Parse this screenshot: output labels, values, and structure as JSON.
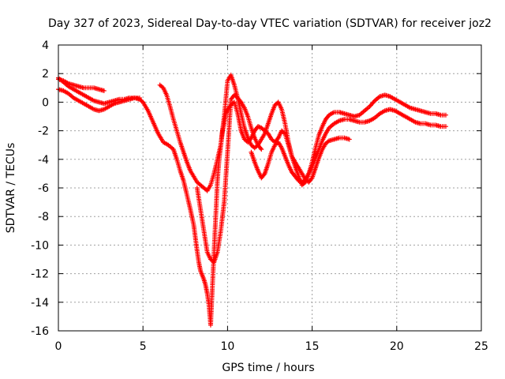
{
  "chart_data": {
    "type": "scatter",
    "title": "Day 327 of 2023, Sidereal Day-to-day VTEC variation (SDTVAR) for receiver joz2",
    "xlabel": "GPS time / hours",
    "ylabel": "SDTVAR / TECUs",
    "xlim": [
      0,
      25
    ],
    "ylim": [
      -16,
      4
    ],
    "xticks": [
      0,
      5,
      10,
      15,
      20,
      25
    ],
    "yticks": [
      -16,
      -14,
      -12,
      -10,
      -8,
      -6,
      -4,
      -2,
      0,
      2,
      4
    ],
    "grid": true,
    "marker": "+",
    "color": "#ff0000",
    "series": [
      {
        "x": [
          0.0,
          0.3,
          0.6,
          0.9,
          1.2,
          1.5,
          1.8,
          2.1,
          2.4,
          2.7,
          3.0,
          3.3,
          3.6,
          3.9,
          4.2,
          4.5,
          4.8,
          5.0,
          5.3,
          5.6,
          5.9,
          6.2,
          6.5,
          6.8,
          7.0,
          7.2,
          7.4,
          7.6,
          7.8,
          8.0,
          8.1,
          8.2,
          8.3,
          8.4,
          8.5,
          8.6,
          8.7,
          8.8,
          8.9,
          9.0,
          9.1,
          9.2,
          9.3,
          9.4,
          9.5,
          9.6,
          9.7,
          9.8,
          9.9,
          10.0,
          10.2,
          10.4,
          10.6,
          10.8,
          11.0,
          11.2,
          11.4,
          11.6,
          11.8,
          12.0,
          12.2,
          12.4,
          12.6,
          12.8,
          13.0,
          13.2,
          13.4,
          13.6,
          13.8,
          14.0,
          14.2,
          14.4,
          14.6,
          14.8,
          15.0,
          15.2,
          15.4,
          15.6,
          15.8,
          16.0,
          16.3,
          16.6,
          16.9,
          17.2
        ],
        "y": [
          1.7,
          1.4,
          1.1,
          0.9,
          0.7,
          0.5,
          0.3,
          0.1,
          0.0,
          -0.1,
          0.0,
          0.1,
          0.2,
          0.2,
          0.3,
          0.3,
          0.2,
          0.0,
          -0.6,
          -1.4,
          -2.2,
          -2.8,
          -3.0,
          -3.3,
          -4.0,
          -4.8,
          -5.5,
          -6.5,
          -7.5,
          -8.6,
          -9.5,
          -10.4,
          -11.2,
          -11.8,
          -12.1,
          -12.4,
          -12.8,
          -13.4,
          -14.2,
          -15.6,
          -13.0,
          -10.5,
          -8.0,
          -5.5,
          -4.0,
          -3.0,
          -2.0,
          -1.5,
          -0.8,
          -0.5,
          -0.2,
          0.0,
          -0.8,
          -2.0,
          -2.6,
          -2.8,
          -2.5,
          -2.0,
          -1.7,
          -1.8,
          -2.0,
          -2.2,
          -2.6,
          -2.8,
          -2.5,
          -2.0,
          -2.2,
          -3.0,
          -3.8,
          -4.2,
          -4.6,
          -5.0,
          -5.4,
          -5.6,
          -5.3,
          -4.6,
          -3.9,
          -3.3,
          -2.9,
          -2.7,
          -2.6,
          -2.5,
          -2.5,
          -2.6
        ]
      },
      {
        "x": [
          0.0,
          0.3,
          0.6,
          0.9,
          1.2,
          1.5,
          1.8,
          2.1,
          2.4,
          2.7,
          3.0,
          3.3,
          3.6,
          3.9,
          4.2,
          4.5,
          4.8
        ],
        "y": [
          0.9,
          0.8,
          0.6,
          0.3,
          0.1,
          -0.1,
          -0.3,
          -0.5,
          -0.6,
          -0.5,
          -0.3,
          -0.1,
          0.0,
          0.1,
          0.2,
          0.3,
          0.3
        ]
      },
      {
        "x": [
          0.0,
          0.3,
          0.6,
          0.9,
          1.2,
          1.5,
          1.8,
          2.1,
          2.4,
          2.7
        ],
        "y": [
          1.6,
          1.5,
          1.3,
          1.2,
          1.1,
          1.0,
          1.0,
          1.0,
          0.9,
          0.8
        ]
      },
      {
        "x": [
          6.0,
          6.2,
          6.4,
          6.6,
          6.8,
          7.0,
          7.2,
          7.4,
          7.6,
          7.8,
          8.0,
          8.2,
          8.4,
          8.6,
          8.8,
          9.0,
          9.2,
          9.4,
          9.6,
          9.8,
          10.0,
          10.2,
          10.4,
          10.6,
          10.8,
          11.0,
          11.2,
          11.4,
          11.6,
          11.8,
          12.0,
          12.2,
          12.4,
          12.6,
          12.8,
          13.0,
          13.2,
          13.4,
          13.6,
          13.8,
          14.0,
          14.2,
          14.4,
          14.6,
          14.8,
          15.0,
          15.2,
          15.4,
          15.6,
          15.8,
          16.0,
          16.3,
          16.6,
          16.9,
          17.2,
          17.5,
          17.8,
          18.1,
          18.4,
          18.7,
          19.0,
          19.3,
          19.6,
          19.9,
          20.2,
          20.5,
          20.8,
          21.1,
          21.4,
          21.7,
          22.0,
          22.3,
          22.6,
          22.9
        ],
        "y": [
          1.2,
          1.0,
          0.5,
          -0.3,
          -1.2,
          -2.0,
          -2.8,
          -3.5,
          -4.2,
          -4.8,
          -5.2,
          -5.6,
          -5.8,
          -6.0,
          -6.2,
          -5.8,
          -5.0,
          -4.0,
          -3.0,
          -1.0,
          1.5,
          1.9,
          1.2,
          0.3,
          -0.8,
          -1.8,
          -2.5,
          -3.0,
          -3.2,
          -3.0,
          -2.6,
          -2.2,
          -1.5,
          -0.8,
          -0.2,
          0.0,
          -0.5,
          -1.5,
          -2.8,
          -3.8,
          -4.5,
          -5.2,
          -5.8,
          -5.6,
          -5.0,
          -4.2,
          -3.2,
          -2.3,
          -1.7,
          -1.2,
          -0.9,
          -0.7,
          -0.7,
          -0.8,
          -0.9,
          -1.0,
          -0.9,
          -0.6,
          -0.3,
          0.1,
          0.4,
          0.5,
          0.4,
          0.2,
          0.0,
          -0.2,
          -0.4,
          -0.5,
          -0.6,
          -0.7,
          -0.8,
          -0.8,
          -0.9,
          -0.9
        ]
      },
      {
        "x": [
          8.2,
          8.4,
          8.6,
          8.8,
          9.0,
          9.2,
          9.4,
          9.6,
          9.8,
          10.0,
          10.2,
          10.4,
          10.6,
          10.8,
          11.0,
          11.2,
          11.4,
          11.6,
          11.8,
          12.0
        ],
        "y": [
          -6.0,
          -7.5,
          -9.0,
          -10.5,
          -11.0,
          -11.2,
          -10.5,
          -9.0,
          -7.0,
          -3.5,
          0.2,
          0.5,
          0.3,
          0.0,
          -0.4,
          -1.0,
          -1.8,
          -2.5,
          -3.0,
          -3.3
        ]
      },
      {
        "x": [
          11.4,
          11.6,
          11.8,
          12.0,
          12.2,
          12.4,
          12.6,
          12.8,
          13.0,
          13.2,
          13.4,
          13.6,
          13.8,
          14.0,
          14.2,
          14.4,
          14.6,
          14.8,
          15.0,
          15.2,
          15.4,
          15.6,
          15.8,
          16.0,
          16.3,
          16.6,
          16.9,
          17.2,
          17.5,
          17.8,
          18.1,
          18.4,
          18.7,
          19.0,
          19.3,
          19.6,
          19.9,
          20.2,
          20.5,
          20.8,
          21.1,
          21.4,
          21.7,
          22.0,
          22.3,
          22.6,
          22.9
        ],
        "y": [
          -3.5,
          -4.2,
          -4.8,
          -5.3,
          -5.0,
          -4.3,
          -3.5,
          -3.0,
          -2.8,
          -3.2,
          -3.8,
          -4.4,
          -4.9,
          -5.2,
          -5.5,
          -5.6,
          -5.4,
          -5.0,
          -4.5,
          -3.9,
          -3.3,
          -2.7,
          -2.2,
          -1.8,
          -1.5,
          -1.3,
          -1.2,
          -1.2,
          -1.3,
          -1.4,
          -1.4,
          -1.3,
          -1.1,
          -0.8,
          -0.6,
          -0.5,
          -0.6,
          -0.8,
          -1.0,
          -1.2,
          -1.4,
          -1.5,
          -1.5,
          -1.6,
          -1.6,
          -1.7,
          -1.7
        ]
      }
    ]
  }
}
